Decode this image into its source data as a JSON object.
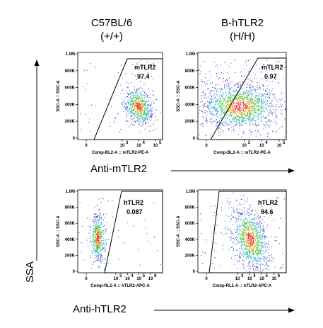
{
  "headers": {
    "col1_line1": "C57BL/6",
    "col1_line2": "(+/+)",
    "col2_line1": "B-hTLR2",
    "col2_line2": "(H/H)"
  },
  "labels": {
    "anti_mtlr2": "Anti-mTLR2",
    "anti_htlr2": "Anti-hTLR2",
    "ssa": "SSA"
  },
  "chart_data": [
    {
      "type": "scatter",
      "panel": "top-left",
      "xlabel": "Comp-BL2-A :: mTLR2-PE-A",
      "ylabel": "SSC-A :: SSC-A",
      "yticks": [
        "1.0M",
        "800K",
        "600K",
        "400K",
        "200K",
        "0"
      ],
      "xticks": [
        "0",
        "10",
        "10",
        "10"
      ],
      "xticks_exp": [
        "",
        "3",
        "4",
        "5"
      ],
      "gate_label": "mTLR2",
      "gate_value": "97.4"
    },
    {
      "type": "scatter",
      "panel": "top-right",
      "xlabel": "Comp-BL2-A :: mTLR2-PE-A",
      "ylabel": "SSC-A :: SSC-A",
      "yticks": [
        "1.0M",
        "800K",
        "600K",
        "400K",
        "200K",
        "0"
      ],
      "xticks": [
        "0",
        "10",
        "10",
        "10"
      ],
      "xticks_exp": [
        "",
        "3",
        "4",
        "5"
      ],
      "gate_label": "mTLR2",
      "gate_value": "0.97"
    },
    {
      "type": "scatter",
      "panel": "bottom-left",
      "xlabel": "Comp-RL1-A :: hTLR2-APC-A",
      "ylabel": "SSC-A :: SSC-A",
      "yticks": [
        "1.0M",
        "800K",
        "600K",
        "400K",
        "200K",
        "0"
      ],
      "xticks": [
        "0",
        "10",
        "10",
        "10",
        "10"
      ],
      "xticks_exp": [
        "",
        "3",
        "4",
        "5",
        "6"
      ],
      "gate_label": "hTLR2",
      "gate_value": "0.087"
    },
    {
      "type": "scatter",
      "panel": "bottom-right",
      "xlabel": "Comp-RL1-A :: hTLR2-APC-A",
      "ylabel": "SSC-A :: SSC-A",
      "yticks": [
        "1.0M",
        "800K",
        "600K",
        "400K",
        "200K",
        "0"
      ],
      "xticks": [
        "0",
        "10",
        "10",
        "10",
        "10"
      ],
      "xticks_exp": [
        "",
        "3",
        "4",
        "5",
        "6"
      ],
      "gate_label": "hTLR2",
      "gate_value": "94.6"
    }
  ],
  "colors": {
    "density_low": "#1f2dbf",
    "density_mid": "#2fbf3a",
    "density_high": "#f2a516",
    "density_peak": "#e0221c"
  }
}
